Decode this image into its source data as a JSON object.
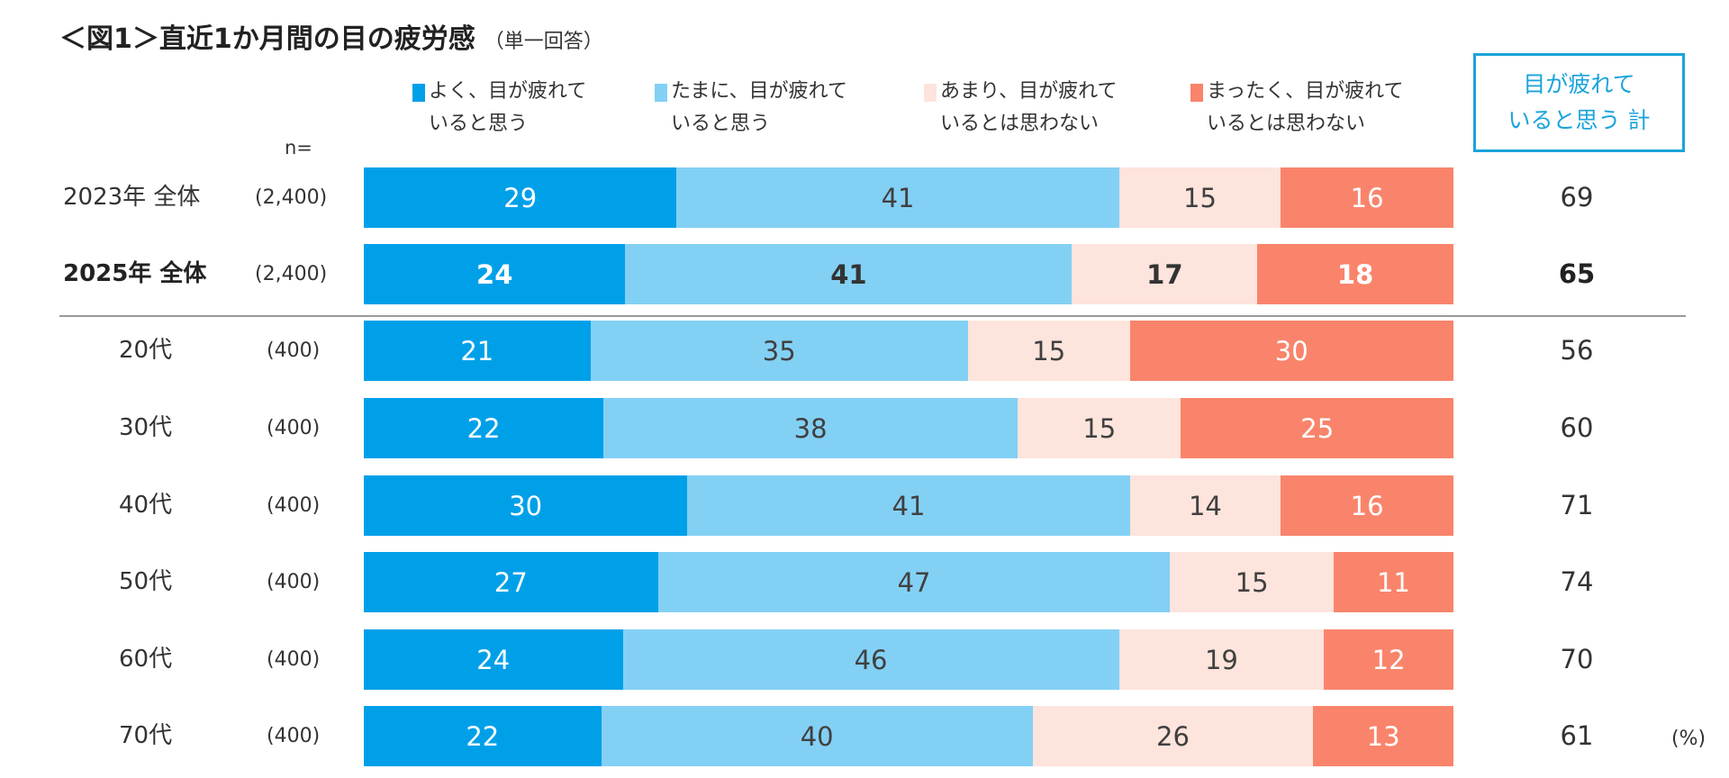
{
  "chart_data": {
    "type": "bar",
    "orientation": "horizontal-stacked",
    "title": "＜図1＞直近1か月間の目の疲労感",
    "subtitle": "（単一回答）",
    "n_label": "n=",
    "unit": "(%)",
    "total_header": "目が疲れて いると思う 計",
    "series": [
      {
        "name": "よく、目が疲れて いると思う",
        "color": "#00a0e9",
        "text_color": "#ffffff"
      },
      {
        "name": "たまに、目が疲れて いると思う",
        "color": "#83d0f5",
        "text_color": "#404040"
      },
      {
        "name": "あまり、目が疲れて いるとは思わない",
        "color": "#fde4dc",
        "text_color": "#404040"
      },
      {
        "name": "まったく、目が疲れて いるとは思わない",
        "color": "#f9846b",
        "text_color": "#ffffff"
      }
    ],
    "rows": [
      {
        "label": "2023年 全体",
        "n": "(2,400)",
        "values": [
          29,
          41,
          15,
          16
        ],
        "total": 69,
        "bold": false
      },
      {
        "label": "2025年 全体",
        "n": "(2,400)",
        "values": [
          24,
          41,
          17,
          18
        ],
        "total": 65,
        "bold": true
      },
      {
        "label": "20代",
        "n": "(400)",
        "values": [
          21,
          35,
          15,
          30
        ],
        "total": 56,
        "bold": false
      },
      {
        "label": "30代",
        "n": "(400)",
        "values": [
          22,
          38,
          15,
          25
        ],
        "total": 60,
        "bold": false
      },
      {
        "label": "40代",
        "n": "(400)",
        "values": [
          30,
          41,
          14,
          16
        ],
        "total": 71,
        "bold": false
      },
      {
        "label": "50代",
        "n": "(400)",
        "values": [
          27,
          47,
          15,
          11
        ],
        "total": 74,
        "bold": false
      },
      {
        "label": "60代",
        "n": "(400)",
        "values": [
          24,
          46,
          19,
          12
        ],
        "total": 70,
        "bold": false
      },
      {
        "label": "70代",
        "n": "(400)",
        "values": [
          22,
          40,
          26,
          13
        ],
        "total": 61,
        "bold": false
      }
    ]
  }
}
